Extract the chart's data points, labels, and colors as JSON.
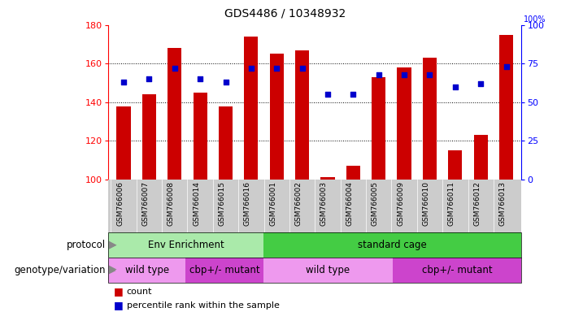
{
  "title": "GDS4486 / 10348932",
  "samples": [
    "GSM766006",
    "GSM766007",
    "GSM766008",
    "GSM766014",
    "GSM766015",
    "GSM766016",
    "GSM766001",
    "GSM766002",
    "GSM766003",
    "GSM766004",
    "GSM766005",
    "GSM766009",
    "GSM766010",
    "GSM766011",
    "GSM766012",
    "GSM766013"
  ],
  "counts": [
    138,
    144,
    168,
    145,
    138,
    174,
    165,
    167,
    101,
    107,
    153,
    158,
    163,
    115,
    123,
    175
  ],
  "percentiles": [
    63,
    65,
    72,
    65,
    63,
    72,
    72,
    72,
    55,
    55,
    68,
    68,
    68,
    60,
    62,
    73
  ],
  "bar_color": "#cc0000",
  "dot_color": "#0000cc",
  "ymin": 100,
  "ymax": 180,
  "yticks_left": [
    100,
    120,
    140,
    160,
    180
  ],
  "yticks_right": [
    0,
    25,
    50,
    75,
    100
  ],
  "protocol_groups": [
    {
      "label": "Env Enrichment",
      "start": 0,
      "end": 6,
      "color": "#aaeaaa"
    },
    {
      "label": "standard cage",
      "start": 6,
      "end": 16,
      "color": "#44cc44"
    }
  ],
  "genotype_groups": [
    {
      "label": "wild type",
      "start": 0,
      "end": 3,
      "color": "#ee99ee"
    },
    {
      "label": "cbp+/- mutant",
      "start": 3,
      "end": 6,
      "color": "#cc44cc"
    },
    {
      "label": "wild type",
      "start": 6,
      "end": 11,
      "color": "#ee99ee"
    },
    {
      "label": "cbp+/- mutant",
      "start": 11,
      "end": 16,
      "color": "#cc44cc"
    }
  ],
  "legend_count_label": "count",
  "legend_pct_label": "percentile rank within the sample",
  "protocol_row_label": "protocol",
  "genotype_row_label": "genotype/variation",
  "background_color": "#ffffff",
  "title_fontsize": 10,
  "grid_lines": [
    120,
    140,
    160
  ],
  "xlbl_bg": "#cccccc"
}
